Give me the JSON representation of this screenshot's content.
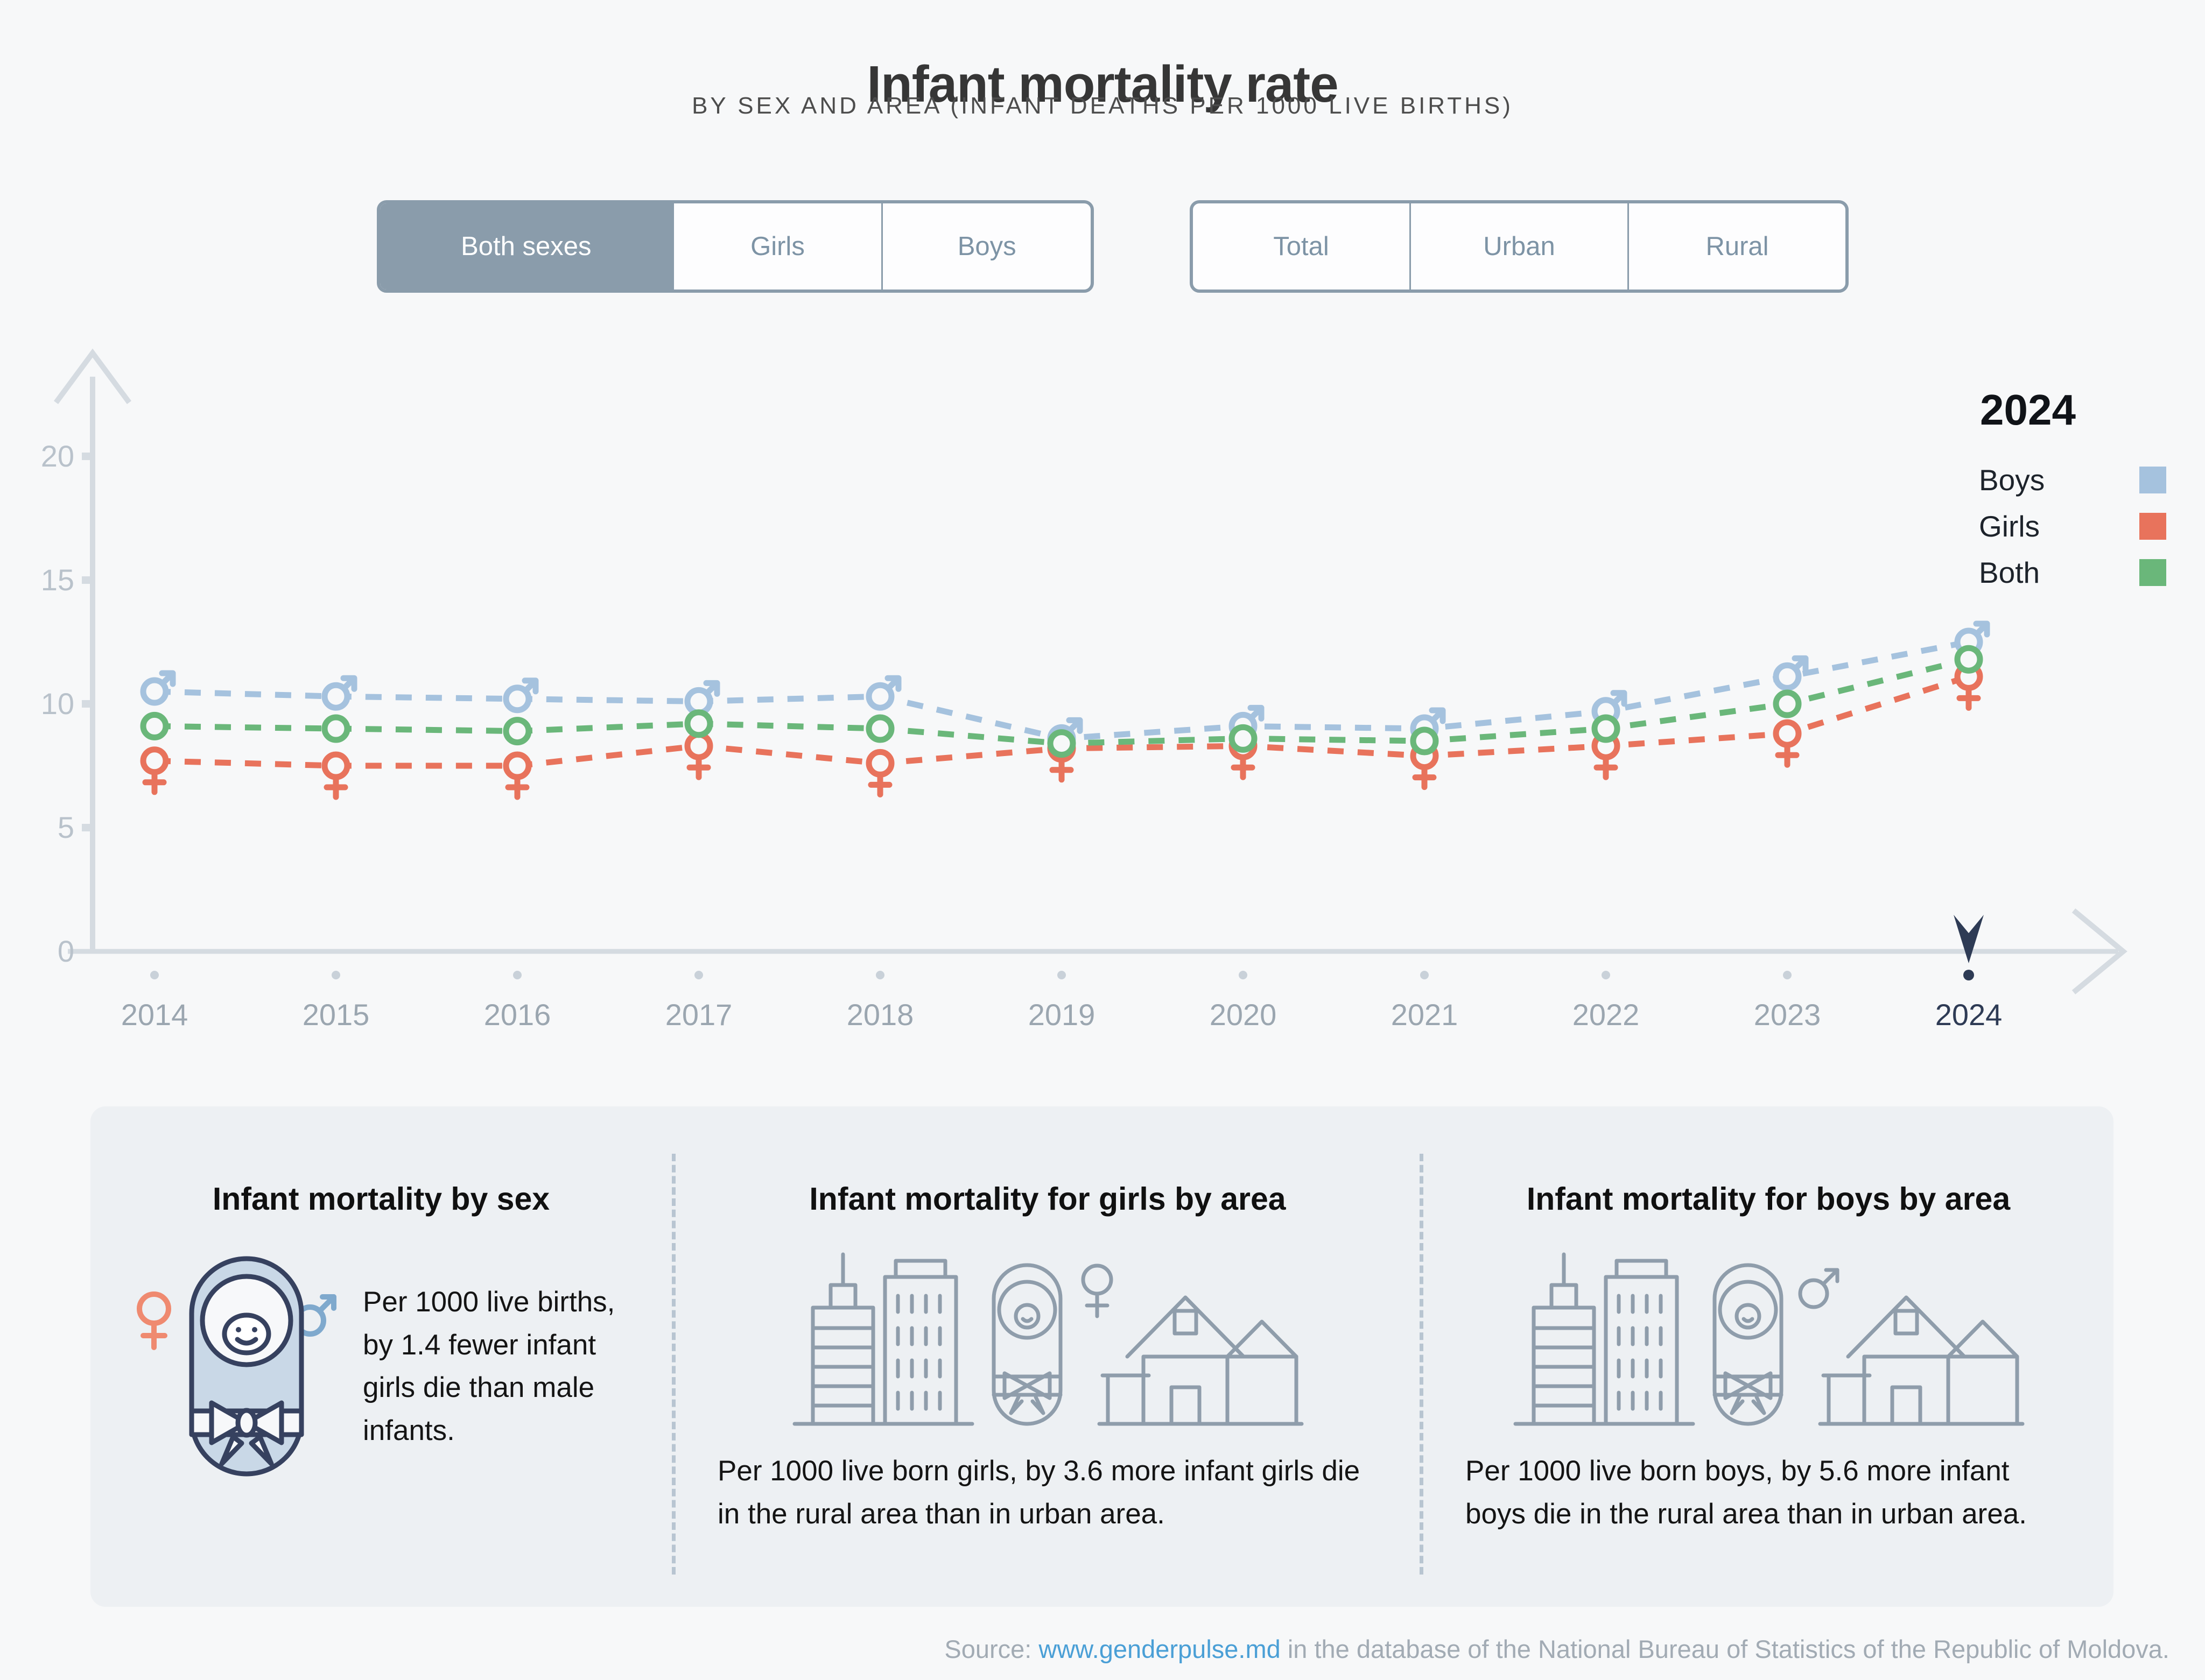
{
  "header": {
    "title": "Infant mortality rate",
    "subtitle": "BY SEX AND AREA (INFANT DEATHS PER 1000 LIVE BIRTHS)"
  },
  "controls": {
    "sex_toggle": {
      "options": [
        "Both sexes",
        "Girls",
        "Boys"
      ],
      "selected": "Both sexes"
    },
    "area_toggle": {
      "options": [
        "Total",
        "Urban",
        "Rural"
      ],
      "selected": null
    }
  },
  "legend": {
    "year": "2024",
    "items": [
      {
        "label": "Boys",
        "color": "#a5c2de"
      },
      {
        "label": "Girls",
        "color": "#e8735c"
      },
      {
        "label": "Both",
        "color": "#6ab77a"
      }
    ]
  },
  "chart_data": {
    "type": "line",
    "title": "",
    "xlabel": "",
    "ylabel": "",
    "categories": [
      "2014",
      "2015",
      "2016",
      "2017",
      "2018",
      "2019",
      "2020",
      "2021",
      "2022",
      "2023",
      "2024"
    ],
    "yticks": [
      0,
      5,
      10,
      15,
      20
    ],
    "ylim": [
      0,
      22
    ],
    "grid": false,
    "legend_position": "top-right",
    "selected_year": "2024",
    "line_style": "dashed",
    "series": [
      {
        "name": "Boys",
        "marker": "male",
        "color": "#a5c2de",
        "values": [
          10.5,
          10.3,
          10.2,
          10.1,
          10.3,
          8.6,
          9.1,
          9.0,
          9.7,
          11.1,
          12.5
        ]
      },
      {
        "name": "Girls",
        "marker": "female",
        "color": "#e8735c",
        "values": [
          7.7,
          7.5,
          7.5,
          8.3,
          7.6,
          8.2,
          8.3,
          7.9,
          8.3,
          8.8,
          11.1
        ]
      },
      {
        "name": "Both",
        "marker": "circle",
        "color": "#6ab77a",
        "values": [
          9.1,
          9.0,
          8.9,
          9.2,
          9.0,
          8.4,
          8.6,
          8.5,
          9.0,
          10.0,
          11.8
        ]
      }
    ]
  },
  "cards": [
    {
      "title": "Infant mortality by sex",
      "body": "Per 1000 live births, by 1.4 fewer infant girls die than male infants."
    },
    {
      "title": "Infant mortality for girls by area",
      "body": "Per 1000 live born girls, by 3.6 more infant girls die in the rural area than in urban area."
    },
    {
      "title": "Infant mortality for boys by area",
      "body": "Per 1000 live born boys, by 5.6 more infant boys die in the rural area than in urban area."
    }
  ],
  "source": {
    "prefix": "Source: ",
    "link_text": "www.genderpulse.md",
    "suffix": " in the database of the National Bureau of Statistics of the Republic of Moldova."
  }
}
